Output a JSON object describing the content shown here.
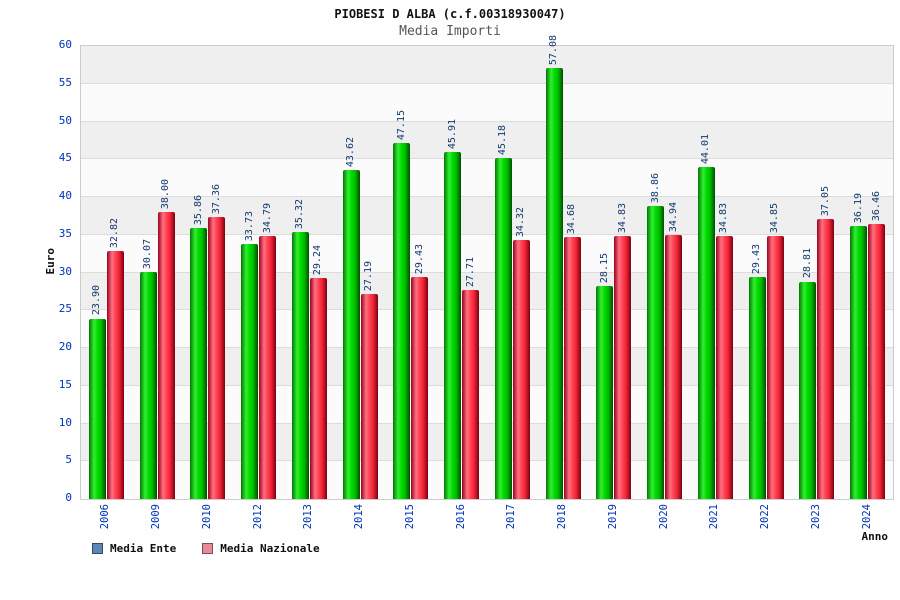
{
  "chart_data": {
    "type": "bar",
    "title": "PIOBESI D ALBA (c.f.00318930047)",
    "subtitle": "Media Importi",
    "xlabel": "Anno",
    "ylabel": "Euro",
    "ylim": [
      0,
      60
    ],
    "ytick_step": 5,
    "grid": true,
    "legend_position": "bottom-left",
    "categories": [
      "2006",
      "2009",
      "2010",
      "2012",
      "2013",
      "2014",
      "2015",
      "2016",
      "2017",
      "2018",
      "2019",
      "2020",
      "2021",
      "2022",
      "2023",
      "2024"
    ],
    "series": [
      {
        "name": "Media Ente",
        "bar_color": "#00cc00",
        "legend_color": "#5f87b5",
        "values": [
          23.9,
          30.07,
          35.86,
          33.73,
          35.32,
          43.62,
          47.15,
          45.91,
          45.18,
          57.08,
          28.15,
          38.86,
          44.01,
          29.43,
          28.81,
          36.19
        ]
      },
      {
        "name": "Media Nazionale",
        "bar_color": "#ee3344",
        "legend_color": "#e98a9b",
        "values": [
          32.82,
          38.0,
          37.36,
          34.79,
          29.24,
          27.19,
          29.43,
          27.71,
          34.32,
          34.68,
          34.83,
          34.94,
          34.83,
          34.85,
          37.05,
          36.46
        ]
      }
    ]
  }
}
